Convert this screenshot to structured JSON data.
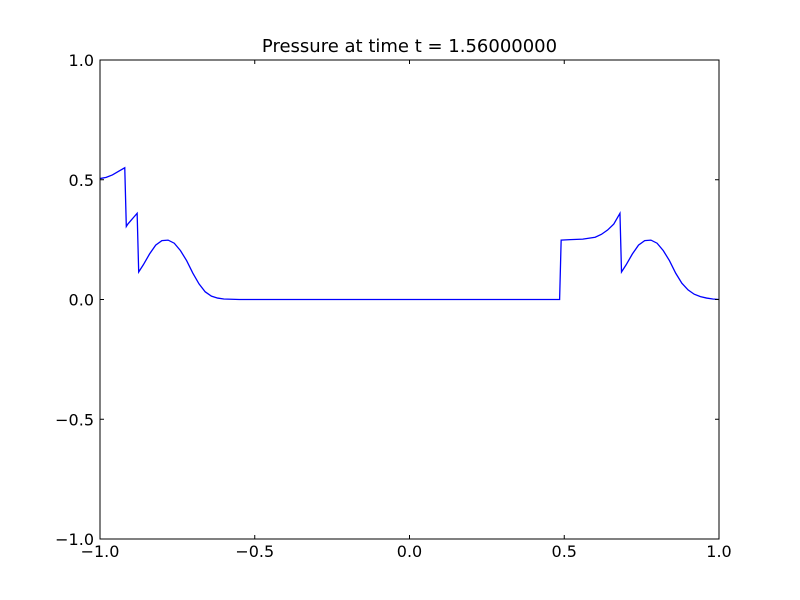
{
  "chart_data": {
    "type": "line",
    "title": "Pressure at time t =      1.56000000",
    "xlabel": "",
    "ylabel": "",
    "xlim": [
      -1.0,
      1.0
    ],
    "ylim": [
      -1.0,
      1.0
    ],
    "grid": false,
    "legend": "none",
    "x_ticks": [
      "−1.0",
      "−0.5",
      "0.0",
      "0.5",
      "1.0"
    ],
    "x_tick_values": [
      -1.0,
      -0.5,
      0.0,
      0.5,
      1.0
    ],
    "y_ticks": [
      "−1.0",
      "−0.5",
      "0.0",
      "0.5",
      "1.0"
    ],
    "y_tick_values": [
      -1.0,
      -0.5,
      0.0,
      0.5,
      1.0
    ],
    "series": [
      {
        "color": "#0000ff",
        "points": [
          [
            -1.0,
            0.505
          ],
          [
            -0.98,
            0.51
          ],
          [
            -0.96,
            0.52
          ],
          [
            -0.94,
            0.535
          ],
          [
            -0.92,
            0.55
          ],
          [
            -0.915,
            0.305
          ],
          [
            -0.91,
            0.315
          ],
          [
            -0.9,
            0.33
          ],
          [
            -0.89,
            0.345
          ],
          [
            -0.88,
            0.36
          ],
          [
            -0.875,
            0.115
          ],
          [
            -0.86,
            0.145
          ],
          [
            -0.84,
            0.19
          ],
          [
            -0.82,
            0.227
          ],
          [
            -0.8,
            0.246
          ],
          [
            -0.78,
            0.248
          ],
          [
            -0.76,
            0.235
          ],
          [
            -0.74,
            0.204
          ],
          [
            -0.72,
            0.162
          ],
          [
            -0.7,
            0.11
          ],
          [
            -0.68,
            0.065
          ],
          [
            -0.66,
            0.032
          ],
          [
            -0.64,
            0.014
          ],
          [
            -0.62,
            0.006
          ],
          [
            -0.6,
            0.002
          ],
          [
            -0.55,
            0.0
          ],
          [
            -0.5,
            0.0
          ],
          [
            0.0,
            0.0
          ],
          [
            0.4,
            0.0
          ],
          [
            0.485,
            0.0
          ],
          [
            0.49,
            0.248
          ],
          [
            0.52,
            0.25
          ],
          [
            0.56,
            0.252
          ],
          [
            0.6,
            0.26
          ],
          [
            0.62,
            0.272
          ],
          [
            0.64,
            0.29
          ],
          [
            0.66,
            0.315
          ],
          [
            0.68,
            0.36
          ],
          [
            0.685,
            0.115
          ],
          [
            0.7,
            0.145
          ],
          [
            0.72,
            0.19
          ],
          [
            0.74,
            0.227
          ],
          [
            0.76,
            0.246
          ],
          [
            0.78,
            0.248
          ],
          [
            0.8,
            0.235
          ],
          [
            0.82,
            0.204
          ],
          [
            0.84,
            0.162
          ],
          [
            0.86,
            0.11
          ],
          [
            0.88,
            0.068
          ],
          [
            0.9,
            0.04
          ],
          [
            0.92,
            0.022
          ],
          [
            0.94,
            0.012
          ],
          [
            0.96,
            0.006
          ],
          [
            0.98,
            0.002
          ],
          [
            1.0,
            0.0
          ]
        ]
      }
    ]
  }
}
